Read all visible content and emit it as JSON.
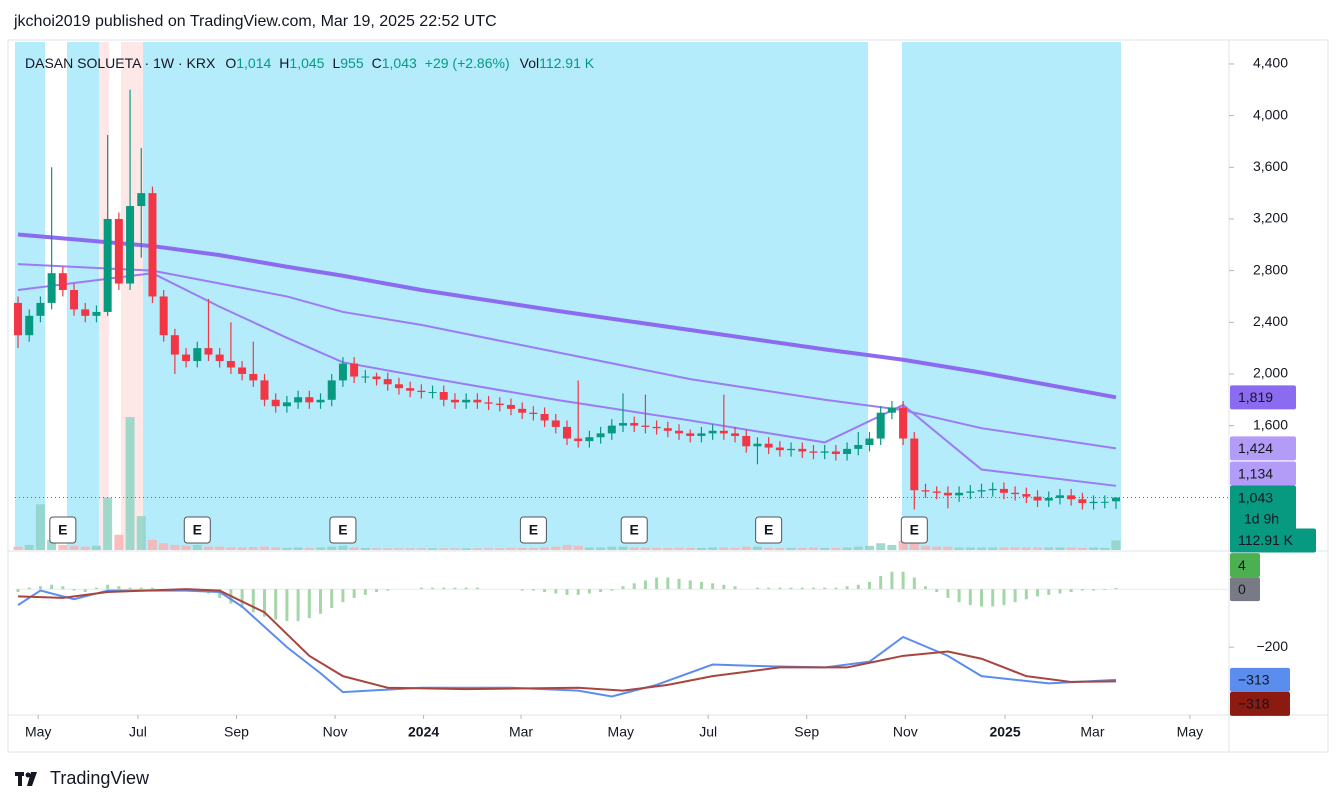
{
  "header": {
    "published": "jkchoi2019 published on TradingView.com, Mar 19, 2025 22:52 UTC"
  },
  "footer": {
    "brand": "TradingView"
  },
  "chart_data": {
    "type": "candlestick",
    "title": "DASAN SOLUETA · 1W · KRX",
    "legend": [
      {
        "key": "O",
        "value": 1014,
        "label": "1,014"
      },
      {
        "key": "H",
        "value": 1045,
        "label": "1,045"
      },
      {
        "key": "L",
        "value": 955,
        "label": "955"
      },
      {
        "key": "C",
        "value": 1043,
        "label": "1,043"
      }
    ],
    "change": {
      "value": 29,
      "label": "+29 (+2.86%)"
    },
    "volume_legend": {
      "key": "Vol",
      "value": 112.91,
      "label": "112.91 K"
    },
    "countdown": "1d 9h",
    "up_color": "#089981",
    "down_color": "#f23645",
    "xlim": [
      -0.27,
      108
    ],
    "xticks": [
      {
        "value": 1.8,
        "label": "May"
      },
      {
        "value": 10.7,
        "label": "Jul"
      },
      {
        "value": 19.5,
        "label": "Sep"
      },
      {
        "value": 28.3,
        "label": "Nov"
      },
      {
        "value": 36.2,
        "label": "2024"
      },
      {
        "value": 44.9,
        "label": "Mar"
      },
      {
        "value": 53.8,
        "label": "May"
      },
      {
        "value": 61.6,
        "label": "Jul"
      },
      {
        "value": 70.4,
        "label": "Sep"
      },
      {
        "value": 79.2,
        "label": "Nov"
      },
      {
        "value": 88.1,
        "label": "2025"
      },
      {
        "value": 95.9,
        "label": "Mar"
      },
      {
        "value": 104.6,
        "label": "May"
      }
    ],
    "ylim": [
      637,
      4570
    ],
    "yticks": [
      {
        "value": 4400,
        "label": "4,400"
      },
      {
        "value": 4000,
        "label": "4,000"
      },
      {
        "value": 3600,
        "label": "3,600"
      },
      {
        "value": 3200,
        "label": "3,200"
      },
      {
        "value": 2800,
        "label": "2,800"
      },
      {
        "value": 2400,
        "label": "2,400"
      },
      {
        "value": 2000,
        "label": "2,000"
      },
      {
        "value": 1600,
        "label": "1,600"
      }
    ],
    "open": [
      2550,
      2300,
      2450,
      2550,
      2780,
      2650,
      2500,
      2450,
      2480,
      3200,
      2700,
      3300,
      3400,
      2600,
      2300,
      2150,
      2100,
      2200,
      2150,
      2100,
      2050,
      2000,
      1950,
      1800,
      1750,
      1780,
      1820,
      1780,
      1800,
      1950,
      2080,
      1980,
      1980,
      1960,
      1920,
      1890,
      1870,
      1860,
      1860,
      1800,
      1780,
      1800,
      1780,
      1770,
      1760,
      1730,
      1700,
      1690,
      1640,
      1590,
      1500,
      1480,
      1510,
      1540,
      1600,
      1620,
      1600,
      1590,
      1580,
      1560,
      1540,
      1520,
      1540,
      1560,
      1540,
      1520,
      1440,
      1460,
      1430,
      1410,
      1420,
      1400,
      1390,
      1400,
      1380,
      1420,
      1450,
      1500,
      1700,
      1740,
      1500,
      1100,
      1090,
      1080,
      1060,
      1080,
      1090,
      1100,
      1110,
      1080,
      1070,
      1050,
      1020,
      1040,
      1060,
      1030,
      1000,
      1010,
      1014
    ],
    "high": [
      2600,
      2500,
      2600,
      3600,
      2830,
      2700,
      2550,
      2530,
      3850,
      3250,
      4200,
      3750,
      3450,
      2650,
      2350,
      2200,
      2250,
      2580,
      2200,
      2400,
      2100,
      2250,
      2000,
      1850,
      1830,
      1870,
      1870,
      1850,
      2000,
      2130,
      2130,
      2030,
      2010,
      2010,
      1970,
      1940,
      1920,
      1910,
      1910,
      1850,
      1850,
      1850,
      1830,
      1820,
      1810,
      1780,
      1750,
      1740,
      1690,
      1640,
      1950,
      1560,
      1590,
      1650,
      1850,
      1670,
      1840,
      1640,
      1630,
      1610,
      1570,
      1590,
      1610,
      1840,
      1590,
      1570,
      1510,
      1510,
      1480,
      1470,
      1470,
      1450,
      1450,
      1450,
      1470,
      1550,
      1550,
      1750,
      1790,
      1790,
      1550,
      1150,
      1130,
      1130,
      1130,
      1140,
      1150,
      1160,
      1160,
      1130,
      1120,
      1100,
      1090,
      1110,
      1110,
      1080,
      1060,
      1060,
      1045
    ],
    "low": [
      2200,
      2250,
      2400,
      2500,
      2600,
      2450,
      2400,
      2400,
      2450,
      2650,
      2650,
      2900,
      2550,
      2250,
      2000,
      2050,
      2050,
      2100,
      2050,
      2000,
      1950,
      1900,
      1750,
      1700,
      1700,
      1730,
      1730,
      1730,
      1750,
      1900,
      1930,
      1930,
      1910,
      1870,
      1840,
      1820,
      1810,
      1810,
      1750,
      1730,
      1730,
      1730,
      1720,
      1710,
      1680,
      1650,
      1640,
      1590,
      1540,
      1450,
      1430,
      1430,
      1460,
      1490,
      1550,
      1550,
      1540,
      1530,
      1510,
      1490,
      1470,
      1470,
      1490,
      1490,
      1470,
      1390,
      1300,
      1380,
      1360,
      1360,
      1350,
      1340,
      1340,
      1330,
      1330,
      1370,
      1400,
      1450,
      1650,
      1450,
      950,
      1040,
      1030,
      960,
      1010,
      1030,
      1040,
      1050,
      1030,
      1020,
      1000,
      970,
      970,
      990,
      980,
      950,
      950,
      960,
      955
    ],
    "close": [
      2300,
      2450,
      2550,
      2780,
      2650,
      2500,
      2450,
      2480,
      3200,
      2700,
      3300,
      3400,
      2600,
      2300,
      2150,
      2100,
      2200,
      2150,
      2100,
      2050,
      2000,
      1950,
      1800,
      1750,
      1780,
      1820,
      1780,
      1800,
      1950,
      2080,
      1980,
      1980,
      1960,
      1920,
      1890,
      1870,
      1860,
      1860,
      1800,
      1780,
      1800,
      1780,
      1770,
      1760,
      1730,
      1700,
      1690,
      1640,
      1590,
      1500,
      1480,
      1510,
      1540,
      1600,
      1620,
      1600,
      1590,
      1580,
      1560,
      1540,
      1520,
      1540,
      1560,
      1540,
      1520,
      1440,
      1460,
      1430,
      1410,
      1420,
      1400,
      1390,
      1400,
      1380,
      1420,
      1450,
      1500,
      1700,
      1740,
      1500,
      1100,
      1090,
      1080,
      1060,
      1080,
      1090,
      1100,
      1110,
      1080,
      1070,
      1050,
      1020,
      1040,
      1060,
      1030,
      1000,
      1010,
      1010,
      1043
    ],
    "volume": {
      "ylim": [
        0,
        6000
      ],
      "up_color": "#8fd3c6",
      "down_color": "#f9b3b0",
      "values": [
        40,
        60,
        540,
        120,
        60,
        50,
        40,
        50,
        620,
        180,
        1570,
        400,
        120,
        80,
        60,
        50,
        60,
        40,
        40,
        30,
        30,
        35,
        40,
        30,
        25,
        30,
        25,
        30,
        40,
        50,
        30,
        25,
        20,
        20,
        20,
        20,
        20,
        20,
        20,
        20,
        20,
        20,
        20,
        20,
        25,
        25,
        25,
        30,
        40,
        60,
        50,
        30,
        30,
        40,
        40,
        30,
        30,
        25,
        25,
        25,
        25,
        25,
        30,
        30,
        25,
        40,
        40,
        25,
        25,
        25,
        25,
        30,
        25,
        25,
        30,
        40,
        50,
        80,
        60,
        110,
        200,
        50,
        40,
        40,
        30,
        30,
        30,
        30,
        30,
        30,
        30,
        30,
        30,
        30,
        30,
        25,
        30,
        25,
        112.91
      ]
    },
    "moving_averages": {
      "x": [
        0,
        12,
        18,
        24,
        29,
        36,
        48,
        60,
        72,
        79,
        86,
        98
      ],
      "series": [
        {
          "color": "#8b6cf0",
          "values": [
            3080,
            2990,
            2920,
            2830,
            2760,
            2650,
            2490,
            2340,
            2190,
            2110,
            2010,
            1819
          ],
          "last_label": "1,819"
        },
        {
          "color": "#9a7cf4",
          "values": [
            2850,
            2800,
            2700,
            2600,
            2480,
            2380,
            2170,
            1960,
            1800,
            1720,
            1580,
            1424
          ],
          "last_label": "1,424"
        },
        {
          "color": "#9a7cf4",
          "values": [
            2650,
            2780,
            2520,
            2280,
            2090,
            1980,
            1800,
            1640,
            1470,
            1760,
            1260,
            1134
          ],
          "last_label": "1,134"
        }
      ]
    },
    "events": {
      "label": "E",
      "x": [
        4,
        16,
        29,
        46,
        55,
        67,
        80
      ]
    },
    "macd": {
      "ylim": [
        -434,
        128
      ],
      "yticks": [
        {
          "value": -200,
          "label": "−200"
        }
      ],
      "zero_line": 0,
      "histogram": {
        "up_color": "#a5d6a7",
        "down_color": "#a5d6a7",
        "values": [
          -10,
          5,
          10,
          15,
          10,
          -5,
          -10,
          5,
          15,
          10,
          5,
          5,
          5,
          0,
          0,
          0,
          -5,
          -15,
          -30,
          -50,
          -65,
          -80,
          -95,
          -105,
          -110,
          -110,
          -100,
          -85,
          -65,
          -45,
          -30,
          -20,
          -10,
          -5,
          0,
          0,
          5,
          5,
          5,
          5,
          5,
          5,
          0,
          0,
          0,
          -5,
          -5,
          -10,
          -15,
          -20,
          -20,
          -15,
          -10,
          -5,
          10,
          20,
          30,
          40,
          40,
          35,
          30,
          25,
          20,
          15,
          10,
          0,
          5,
          5,
          5,
          5,
          5,
          5,
          5,
          5,
          10,
          15,
          25,
          45,
          60,
          60,
          40,
          10,
          -10,
          -30,
          -45,
          -55,
          -60,
          -60,
          -55,
          -45,
          -35,
          -25,
          -20,
          -15,
          -10,
          -5,
          -5,
          -3,
          4
        ]
      },
      "series": [
        {
          "color": "#5b8def",
          "x": [
            0,
            2,
            5,
            8,
            15,
            18,
            20,
            24,
            27,
            29,
            36,
            44,
            50,
            53,
            57,
            62,
            66,
            72,
            76,
            79,
            83,
            86,
            92,
            98
          ],
          "values": [
            -55,
            -5,
            -35,
            -5,
            -5,
            -10,
            -60,
            -200,
            -290,
            -355,
            -340,
            -340,
            -350,
            -370,
            -330,
            -260,
            -265,
            -270,
            -250,
            -165,
            -230,
            -300,
            -325,
            -313
          ],
          "last_label": "−313"
        },
        {
          "color": "#a8453e",
          "x": [
            0,
            4,
            8,
            15,
            18,
            22,
            26,
            29,
            33,
            40,
            50,
            54,
            58,
            62,
            68,
            74,
            79,
            83,
            86,
            90,
            94,
            98
          ],
          "values": [
            -25,
            -30,
            -10,
            0,
            -5,
            -80,
            -230,
            -300,
            -340,
            -345,
            -340,
            -350,
            -330,
            -300,
            -270,
            -270,
            -230,
            -215,
            -240,
            -300,
            -320,
            -318
          ],
          "last_label": "−318"
        }
      ]
    }
  }
}
